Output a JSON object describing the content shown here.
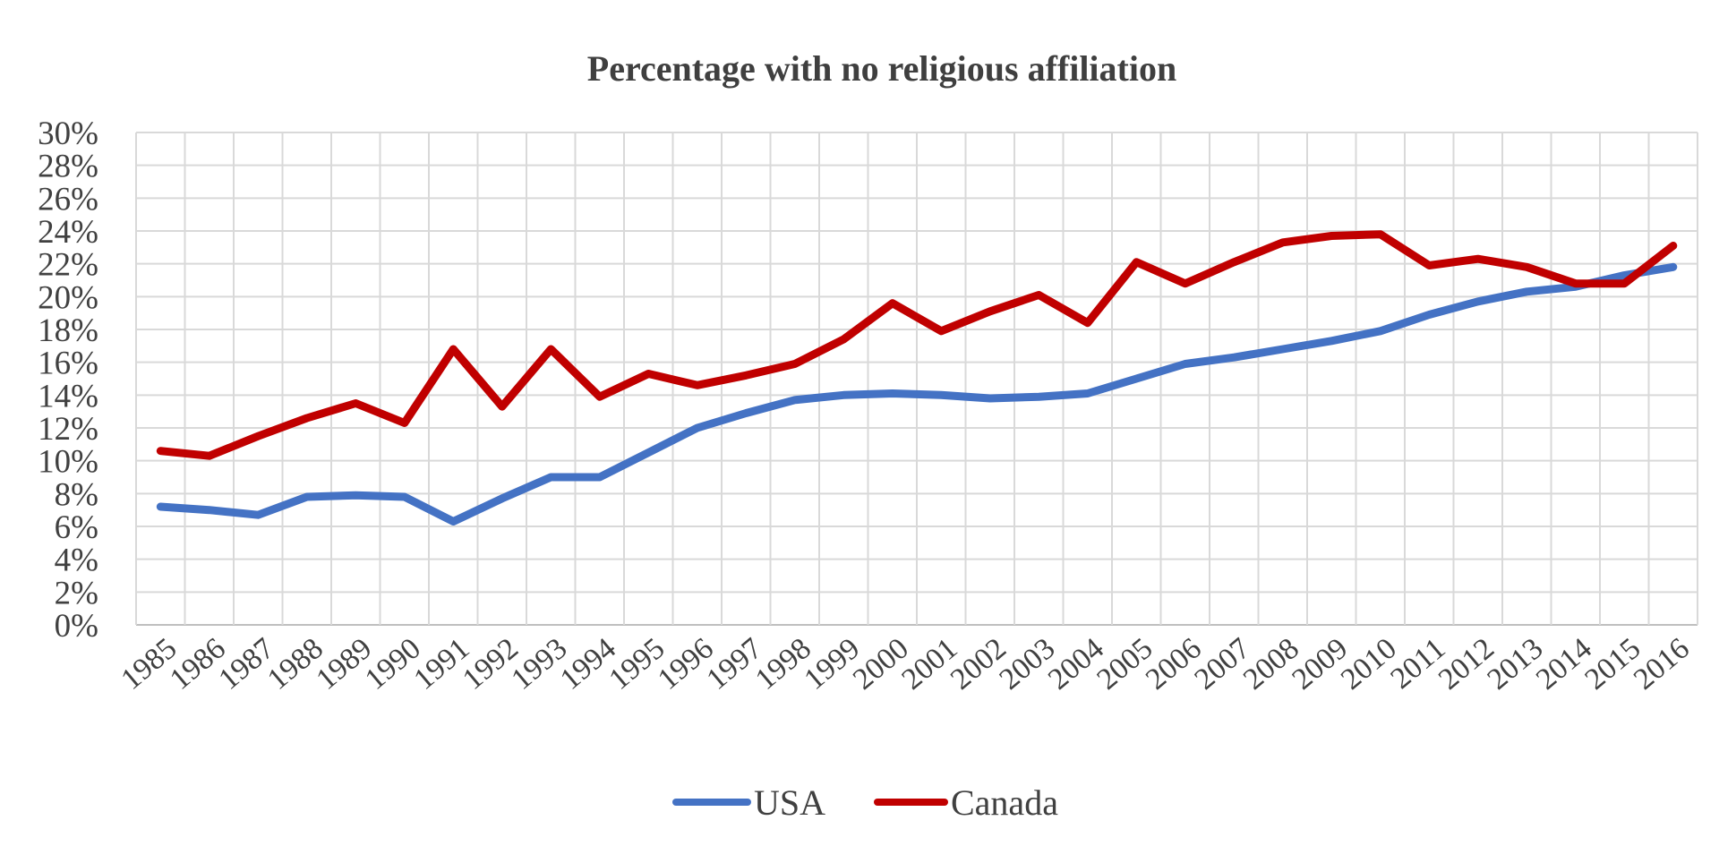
{
  "chart_data": {
    "type": "line",
    "title": "Percentage with no religious affiliation",
    "xlabel": "",
    "ylabel": "",
    "categories": [
      "1985",
      "1986",
      "1987",
      "1988",
      "1989",
      "1990",
      "1991",
      "1992",
      "1993",
      "1994",
      "1995",
      "1996",
      "1997",
      "1998",
      "1999",
      "2000",
      "2001",
      "2002",
      "2003",
      "2004",
      "2005",
      "2006",
      "2007",
      "2008",
      "2009",
      "2010",
      "2011",
      "2012",
      "2013",
      "2014",
      "2015",
      "2016"
    ],
    "y_ticks": [
      "0%",
      "2%",
      "4%",
      "6%",
      "8%",
      "10%",
      "12%",
      "14%",
      "16%",
      "18%",
      "20%",
      "22%",
      "24%",
      "26%",
      "28%",
      "30%"
    ],
    "ylim": [
      0,
      30
    ],
    "y_unit": "%",
    "grid": true,
    "legend_position": "bottom-center",
    "series": [
      {
        "name": "USA",
        "color": "#4472c4",
        "values": [
          7.2,
          7.0,
          6.7,
          7.8,
          7.9,
          7.8,
          6.3,
          7.7,
          9.0,
          9.0,
          10.5,
          12.0,
          12.9,
          13.7,
          14.0,
          14.1,
          14.0,
          13.8,
          13.9,
          14.1,
          15.0,
          15.9,
          16.3,
          16.8,
          17.3,
          17.9,
          18.9,
          19.7,
          20.3,
          20.6,
          21.3,
          21.8
        ]
      },
      {
        "name": "Canada",
        "color": "#c00000",
        "values": [
          10.6,
          10.3,
          11.5,
          12.6,
          13.5,
          12.3,
          16.8,
          13.3,
          16.8,
          13.9,
          15.3,
          14.6,
          15.2,
          15.9,
          17.4,
          19.6,
          17.9,
          19.1,
          20.1,
          18.4,
          22.1,
          20.8,
          22.1,
          23.3,
          23.7,
          23.8,
          21.9,
          22.3,
          21.8,
          20.8,
          20.8,
          23.1
        ]
      }
    ]
  }
}
